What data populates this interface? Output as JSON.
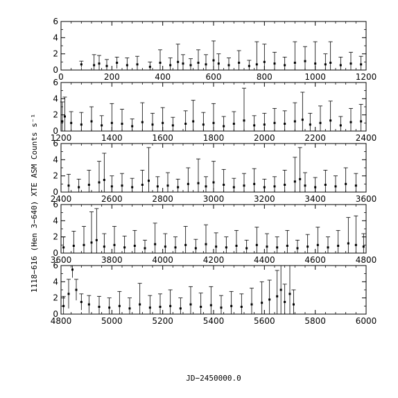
{
  "chart_data": {
    "type": "scatter",
    "xlabel": "JD−2450000.0",
    "ylabel": "1118−616 (Hen 3−640) XTE ASM Counts s⁻¹",
    "grid": false,
    "legend": "none",
    "panels": [
      {
        "xlim": [
          0,
          1200
        ],
        "ylim": [
          0,
          6
        ],
        "xticks": [
          "0",
          "200",
          "400",
          "600",
          "800",
          "1000",
          "1200"
        ],
        "yticks": [
          "0",
          "2",
          "4",
          "6"
        ],
        "x": [
          80,
          130,
          150,
          180,
          220,
          260,
          300,
          350,
          390,
          430,
          460,
          480,
          510,
          540,
          570,
          600,
          620,
          660,
          700,
          740,
          770,
          800,
          840,
          880,
          920,
          960,
          1000,
          1040,
          1060,
          1100,
          1140,
          1180
        ],
        "y": [
          0.7,
          0.6,
          0.8,
          0.5,
          0.9,
          0.6,
          0.7,
          0.4,
          0.9,
          0.6,
          1.0,
          0.8,
          0.6,
          0.9,
          0.7,
          1.2,
          0.8,
          0.6,
          0.9,
          0.5,
          0.7,
          1.0,
          0.8,
          0.6,
          0.9,
          1.1,
          0.8,
          0.7,
          0.9,
          0.6,
          0.8,
          0.7
        ],
        "err": [
          0.4,
          1.3,
          1.0,
          0.8,
          0.7,
          0.9,
          1.0,
          0.6,
          1.6,
          0.9,
          2.2,
          1.1,
          0.8,
          1.6,
          1.2,
          2.4,
          1.2,
          0.9,
          1.5,
          0.7,
          2.8,
          2.2,
          1.4,
          1.0,
          2.6,
          1.8,
          2.7,
          1.3,
          2.6,
          1.0,
          1.4,
          1.0
        ]
      },
      {
        "xlim": [
          1200,
          2400
        ],
        "ylim": [
          0,
          6
        ],
        "xticks": [
          "1200",
          "1400",
          "1600",
          "1800",
          "2000",
          "2200",
          "2400"
        ],
        "yticks": [
          "0",
          "2",
          "4",
          "6"
        ],
        "x": [
          1205,
          1215,
          1240,
          1280,
          1320,
          1360,
          1400,
          1440,
          1480,
          1520,
          1560,
          1600,
          1640,
          1690,
          1720,
          1760,
          1800,
          1840,
          1880,
          1920,
          1960,
          2000,
          2040,
          2080,
          2120,
          2150,
          2180,
          2220,
          2260,
          2300,
          2340,
          2380
        ],
        "y": [
          1.2,
          1.8,
          1.0,
          0.8,
          1.2,
          0.7,
          1.0,
          0.9,
          0.6,
          1.1,
          0.8,
          1.0,
          0.7,
          0.9,
          1.2,
          0.8,
          1.0,
          0.6,
          0.9,
          1.3,
          0.7,
          0.8,
          1.0,
          0.9,
          1.2,
          1.4,
          0.8,
          1.0,
          1.3,
          0.7,
          1.1,
          1.2
        ],
        "err": [
          2.4,
          2.4,
          1.4,
          1.5,
          1.8,
          1.2,
          2.4,
          1.8,
          0.9,
          2.4,
          1.4,
          1.9,
          1.0,
          1.6,
          2.6,
          1.5,
          2.4,
          1.2,
          1.5,
          4.0,
          1.2,
          1.4,
          1.8,
          1.6,
          2.3,
          3.4,
          1.4,
          2.1,
          2.4,
          1.1,
          1.7,
          2.1
        ]
      },
      {
        "xlim": [
          2400,
          3600
        ],
        "ylim": [
          0,
          6
        ],
        "xticks": [
          "2400",
          "2600",
          "2800",
          "3000",
          "3200",
          "3400",
          "3600"
        ],
        "yticks": [
          "0",
          "2",
          "4",
          "6"
        ],
        "x": [
          2430,
          2470,
          2510,
          2550,
          2570,
          2600,
          2640,
          2680,
          2720,
          2745,
          2780,
          2820,
          2860,
          2900,
          2940,
          2970,
          3000,
          3040,
          3080,
          3120,
          3160,
          3200,
          3240,
          3280,
          3320,
          3340,
          3360,
          3400,
          3440,
          3480,
          3520,
          3560
        ],
        "y": [
          0.8,
          0.6,
          0.9,
          1.2,
          1.5,
          0.7,
          0.8,
          0.6,
          0.9,
          1.4,
          0.7,
          0.8,
          0.6,
          1.0,
          1.1,
          0.7,
          1.2,
          0.9,
          0.6,
          0.8,
          1.0,
          0.6,
          0.7,
          0.9,
          1.3,
          1.6,
          0.8,
          0.6,
          0.9,
          0.7,
          1.0,
          0.8
        ],
        "err": [
          1.4,
          1.0,
          1.8,
          2.6,
          3.3,
          1.3,
          1.5,
          1.1,
          1.8,
          4.1,
          1.2,
          1.6,
          1.0,
          2.0,
          3.0,
          1.2,
          2.6,
          1.9,
          1.1,
          1.5,
          1.9,
          1.0,
          1.2,
          1.8,
          3.0,
          3.9,
          1.6,
          1.2,
          1.8,
          1.3,
          2.0,
          1.5
        ]
      },
      {
        "xlim": [
          3600,
          4800
        ],
        "ylim": [
          0,
          6
        ],
        "xticks": [
          "3600",
          "3800",
          "4000",
          "4200",
          "4400",
          "4600",
          "4800"
        ],
        "yticks": [
          "0",
          "2",
          "4",
          "6"
        ],
        "x": [
          3610,
          3650,
          3690,
          3720,
          3740,
          3770,
          3810,
          3850,
          3890,
          3930,
          3970,
          4010,
          4050,
          4090,
          4130,
          4170,
          4210,
          4250,
          4290,
          4330,
          4370,
          4410,
          4450,
          4490,
          4530,
          4570,
          4610,
          4650,
          4690,
          4730,
          4760,
          4790
        ],
        "y": [
          0.7,
          0.9,
          1.0,
          1.3,
          1.6,
          0.8,
          1.0,
          0.7,
          0.9,
          0.6,
          1.1,
          0.8,
          0.7,
          1.0,
          0.6,
          1.1,
          0.8,
          0.7,
          0.9,
          0.6,
          1.0,
          0.8,
          0.7,
          0.9,
          0.6,
          0.8,
          1.0,
          0.7,
          0.9,
          1.2,
          1.0,
          0.8
        ],
        "err": [
          1.3,
          1.8,
          2.3,
          3.8,
          3.9,
          1.6,
          2.3,
          1.4,
          1.9,
          1.0,
          2.6,
          1.6,
          1.3,
          2.3,
          1.1,
          2.4,
          1.7,
          1.3,
          1.9,
          1.0,
          2.2,
          1.6,
          1.3,
          1.9,
          1.0,
          1.5,
          2.2,
          1.3,
          1.9,
          3.2,
          3.6,
          1.6
        ]
      },
      {
        "xlim": [
          4800,
          6000
        ],
        "ylim": [
          0,
          6
        ],
        "xticks": [
          "4800",
          "5000",
          "5200",
          "5400",
          "5600",
          "5800",
          "6000"
        ],
        "yticks": [
          "0",
          "2",
          "4",
          "6"
        ],
        "x": [
          4810,
          4830,
          4845,
          4860,
          4880,
          4910,
          4950,
          4990,
          5030,
          5070,
          5110,
          5150,
          5190,
          5230,
          5270,
          5310,
          5350,
          5390,
          5430,
          5470,
          5510,
          5550,
          5590,
          5620,
          5650,
          5665,
          5680,
          5700,
          5715
        ],
        "y": [
          1.0,
          2.5,
          5.5,
          3.0,
          1.5,
          1.2,
          0.9,
          0.8,
          1.0,
          0.7,
          1.2,
          0.8,
          0.9,
          1.0,
          0.7,
          1.2,
          0.9,
          1.1,
          0.8,
          1.0,
          0.9,
          1.2,
          1.4,
          1.8,
          2.2,
          3.0,
          1.5,
          2.5,
          1.2
        ],
        "err": [
          1.2,
          1.8,
          1.0,
          1.3,
          1.0,
          1.1,
          1.3,
          1.2,
          1.8,
          1.3,
          2.6,
          1.5,
          1.6,
          2.0,
          1.3,
          2.2,
          1.7,
          2.3,
          1.5,
          1.8,
          1.6,
          2.0,
          2.6,
          2.4,
          3.2,
          3.0,
          2.2,
          3.5,
          1.8
        ]
      }
    ]
  }
}
